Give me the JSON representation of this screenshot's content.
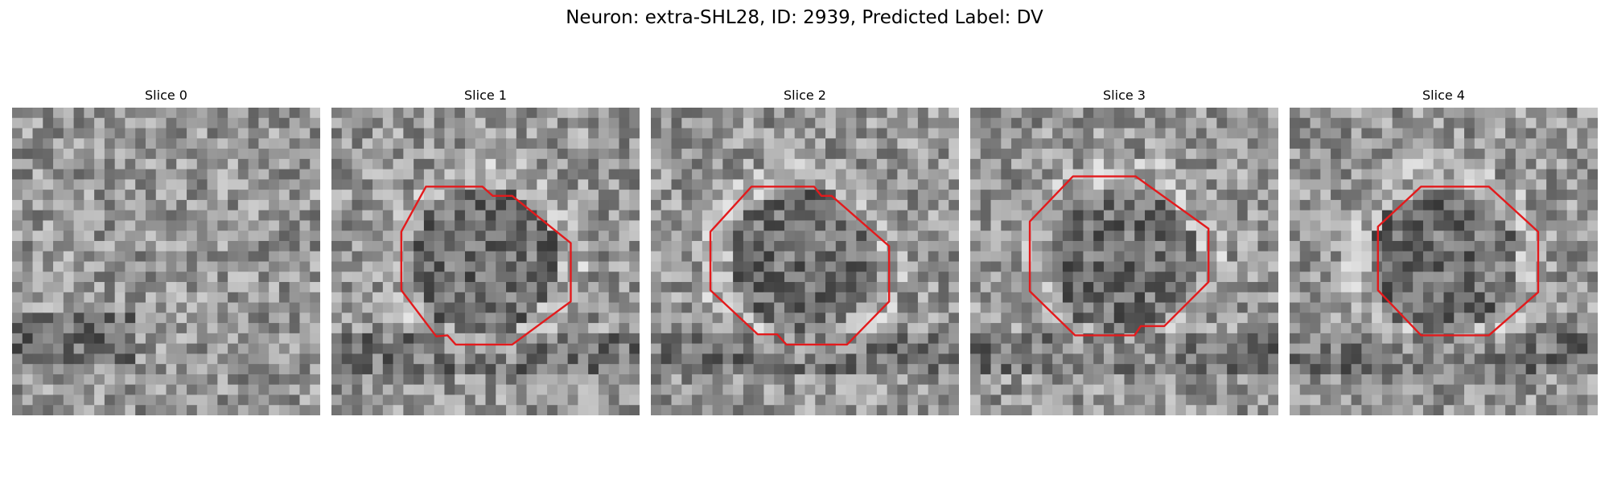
{
  "figure": {
    "title": "Neuron: extra-SHL28, ID: 2939, Predicted Label: DV",
    "contour_color": "#e31a1c"
  },
  "panels": [
    {
      "title": "Slice 0",
      "has_contour": false,
      "seed": 11
    },
    {
      "title": "Slice 1",
      "has_contour": true,
      "seed": 23
    },
    {
      "title": "Slice 2",
      "has_contour": true,
      "seed": 37
    },
    {
      "title": "Slice 3",
      "has_contour": true,
      "seed": 53
    },
    {
      "title": "Slice 4",
      "has_contour": true,
      "seed": 71
    }
  ]
}
